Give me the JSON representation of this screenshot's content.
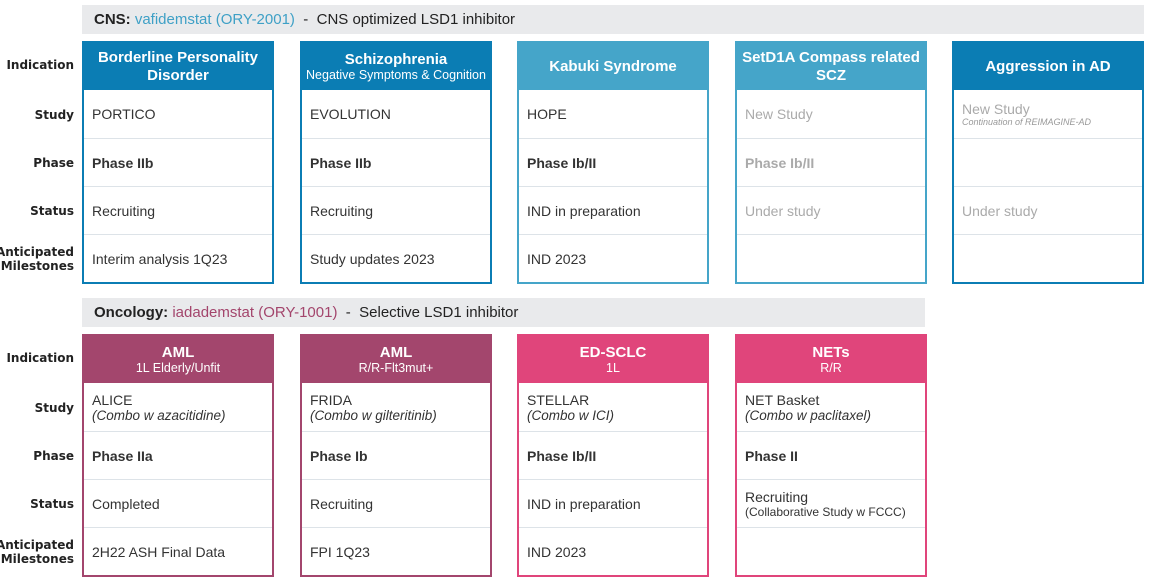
{
  "row_labels": [
    "Indication",
    "Study",
    "Phase",
    "Status",
    "Anticipated Milestones"
  ],
  "cns": {
    "prefix": "CNS:",
    "drug": "vafidemstat (ORY-2001)",
    "sep": "-",
    "desc": "CNS optimized LSD1 inhibitor",
    "drug_color": "#3ea0c6",
    "columns": [
      {
        "title": "Borderline Personality Disorder",
        "subtitle": "",
        "color": "#0b7db4",
        "study": "PORTICO",
        "phase": "Phase IIb",
        "status": "Recruiting",
        "milestone": "Interim analysis 1Q23"
      },
      {
        "title": "Schizophrenia",
        "subtitle": "Negative Symptoms & Cognition",
        "color": "#0b7db4",
        "study": "EVOLUTION",
        "phase": "Phase IIb",
        "status": "Recruiting",
        "milestone": "Study updates 2023"
      },
      {
        "title": "Kabuki Syndrome",
        "subtitle": "",
        "color": "#45a5c9",
        "study": "HOPE",
        "phase": "Phase Ib/II",
        "status": "IND in preparation",
        "milestone": "IND 2023"
      },
      {
        "title": "SetD1A Compass related SCZ",
        "subtitle": "",
        "color": "#45a5c9",
        "study": "New Study",
        "phase": "Phase Ib/II",
        "status": "Under study",
        "milestone": ""
      },
      {
        "title": "Aggression in AD",
        "subtitle": "",
        "color": "#0b7db4",
        "study": "New Study",
        "study_note": "Continuation of REIMAGINE-AD",
        "phase": "",
        "status": "Under study",
        "milestone": ""
      }
    ]
  },
  "oncology": {
    "prefix": "Oncology:",
    "drug": "iadademstat (ORY-1001)",
    "sep": "-",
    "desc": "Selective LSD1 inhibitor",
    "drug_color": "#a3456c",
    "columns": [
      {
        "title": "AML",
        "subtitle": "1L Elderly/Unfit",
        "color": "#a3466d",
        "study": "ALICE",
        "study_note": "(Combo w azacitidine)",
        "phase": "Phase IIa",
        "status": "Completed",
        "milestone": "2H22 ASH Final Data"
      },
      {
        "title": "AML",
        "subtitle": "R/R-Flt3mut+",
        "color": "#a3466d",
        "study": "FRIDA",
        "study_note": "(Combo w gilteritinib)",
        "phase": "Phase Ib",
        "status": "Recruiting",
        "milestone": "FPI 1Q23"
      },
      {
        "title": "ED-SCLC",
        "subtitle": "1L",
        "color": "#e0457b",
        "study": "STELLAR",
        "study_note": "(Combo w ICI)",
        "phase": "Phase Ib/II",
        "status": "IND in preparation",
        "milestone": "IND 2023"
      },
      {
        "title": "NETs",
        "subtitle": "R/R",
        "color": "#e0457b",
        "study": "NET Basket",
        "study_note": "(Combo w paclitaxel)",
        "phase": "Phase II",
        "status": "Recruiting",
        "status_note": "(Collaborative Study w FCCC)",
        "milestone": ""
      }
    ]
  }
}
